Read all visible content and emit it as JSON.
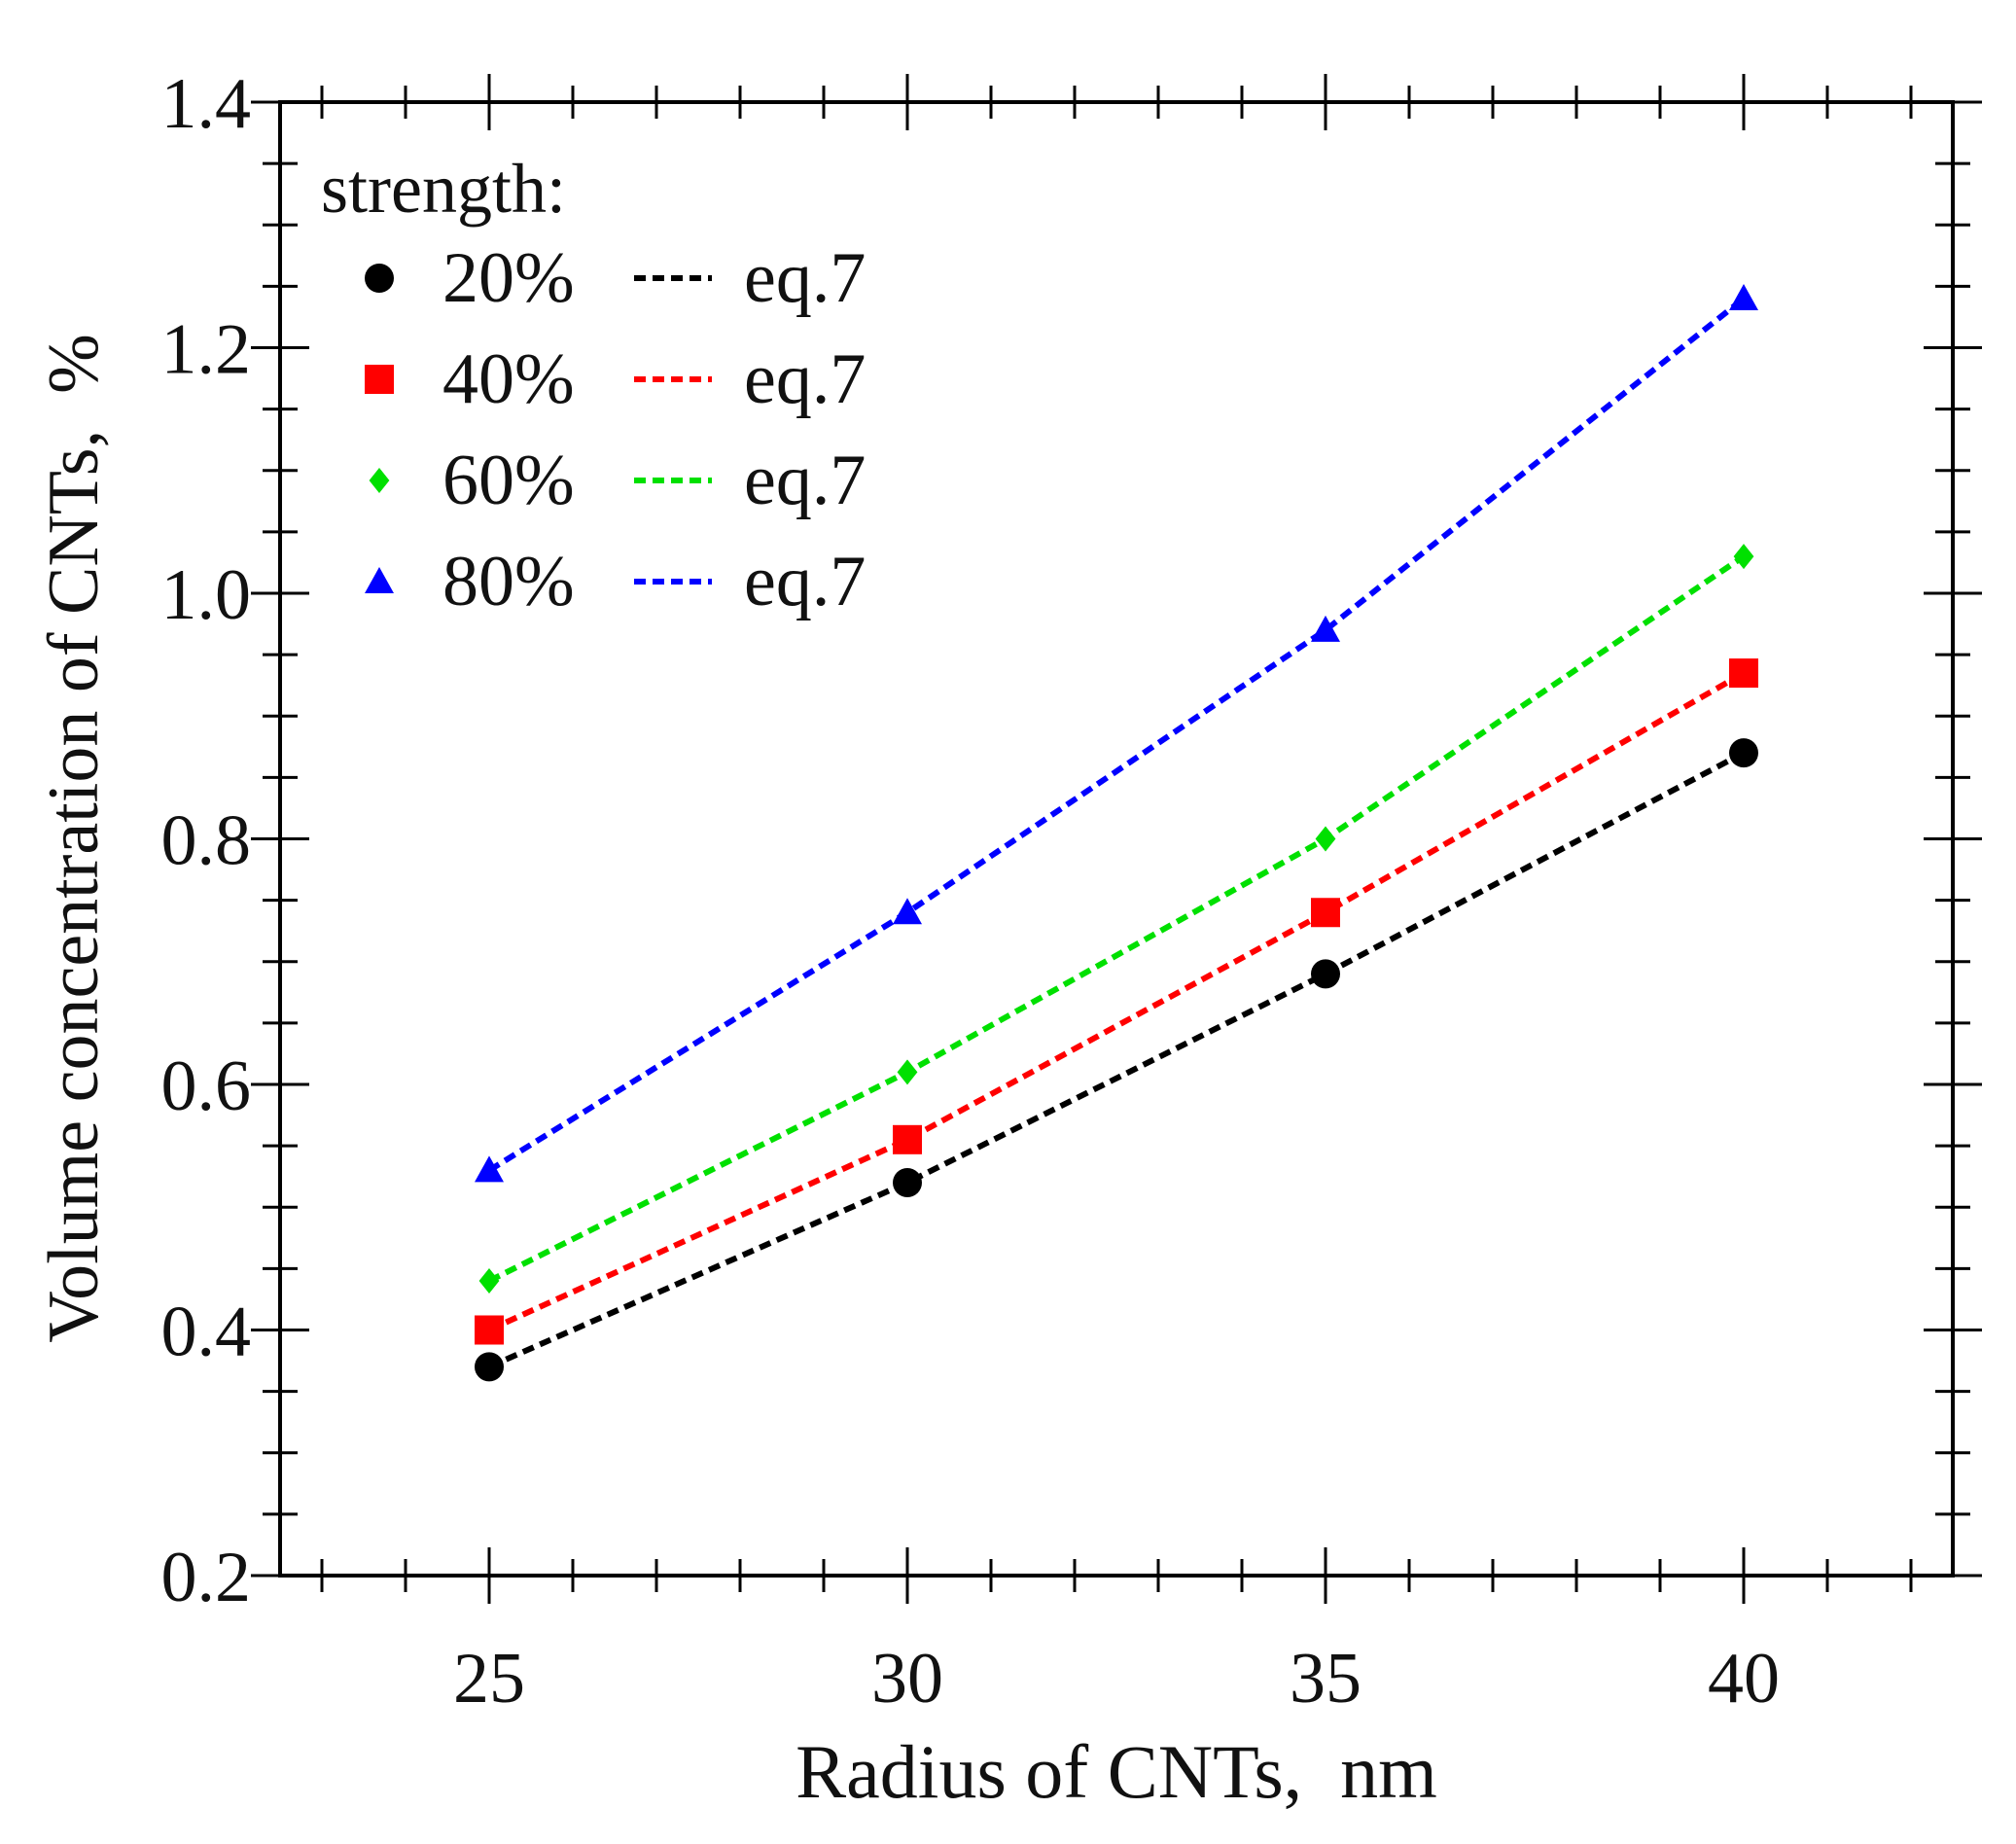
{
  "chart_data": {
    "type": "scatter",
    "title": "",
    "xlabel": "Radius of CNTs,  nm",
    "ylabel": "Volume concentration of CNTs,  %",
    "xlim": [
      22.5,
      42.5
    ],
    "ylim": [
      0.2,
      1.4
    ],
    "x_ticks": [
      25,
      30,
      35,
      40
    ],
    "x_tick_labels": [
      "25",
      "30",
      "35",
      "40"
    ],
    "y_ticks": [
      0.2,
      0.4,
      0.6,
      0.8,
      1.0,
      1.2,
      1.4
    ],
    "y_tick_labels": [
      "0.2",
      "0.4",
      "0.6",
      "0.8",
      "1.0",
      "1.2",
      "1.4"
    ],
    "legend_title": "strength:",
    "legend_position": "top-left",
    "x": [
      25,
      30,
      35,
      40
    ],
    "series": [
      {
        "name": "20%",
        "line_label": "eq.7",
        "marker": "circle",
        "color": "#000000",
        "values": [
          0.37,
          0.52,
          0.69,
          0.87
        ]
      },
      {
        "name": "40%",
        "line_label": "eq.7",
        "marker": "square",
        "color": "#ff0000",
        "values": [
          0.4,
          0.555,
          0.74,
          0.935
        ]
      },
      {
        "name": "60%",
        "line_label": "eq.7",
        "marker": "diamond",
        "color": "#00e000",
        "values": [
          0.44,
          0.61,
          0.8,
          1.03
        ]
      },
      {
        "name": "80%",
        "line_label": "eq.7",
        "marker": "triangle",
        "color": "#0000ff",
        "values": [
          0.53,
          0.74,
          0.97,
          1.24
        ]
      }
    ]
  }
}
